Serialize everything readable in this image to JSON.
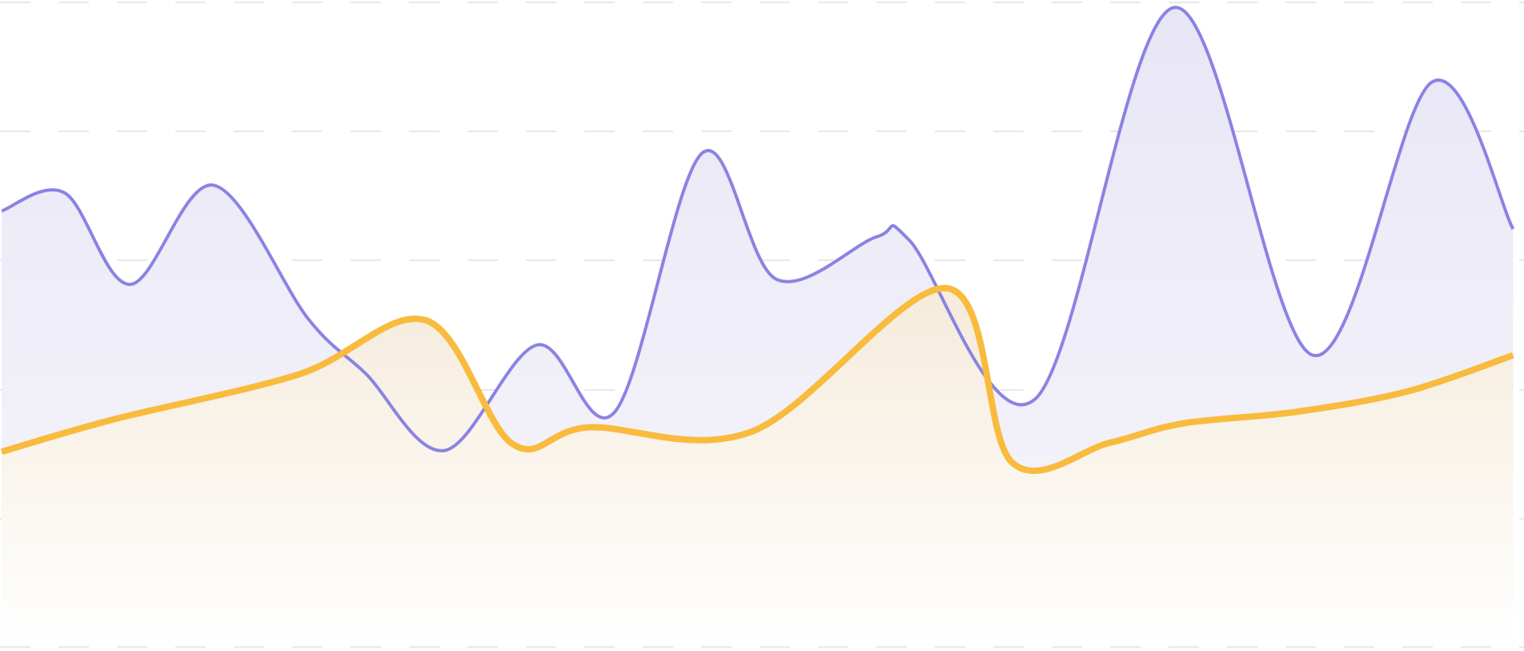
{
  "chart_data": {
    "type": "area",
    "title": "",
    "xlabel": "",
    "ylabel": "",
    "x": [
      0,
      1,
      2,
      3,
      4,
      5,
      6,
      7,
      8,
      9,
      10,
      11,
      12,
      13,
      14,
      15,
      16,
      17,
      18,
      19,
      20,
      21,
      22,
      23,
      24,
      25,
      26
    ],
    "ylim": [
      0,
      100
    ],
    "grid": true,
    "legend": "none",
    "series": [
      {
        "values": [
          67.6,
          70.4,
          56.2,
          71.6,
          50.8,
          42.4,
          30.4,
          46.8,
          36.4,
          76.6,
          57,
          63.6,
          63,
          38.4,
          99.2,
          45.2,
          87.6,
          64.8
        ],
        "x": [
          0,
          1.043,
          2.122,
          3.496,
          5.061,
          5.998,
          7.307,
          8.835,
          10.113,
          11.555,
          12.775,
          14.432,
          14.975,
          17.045,
          19.336,
          21.623,
          23.584,
          24.926
        ],
        "color": "#8a83e3",
        "fill_top": "#e8e6f5",
        "fill_bottom": "#f7f6fb"
      },
      {
        "values": [
          30.2,
          35.2,
          42.2,
          50.6,
          31.4,
          34,
          33.4,
          55.6,
          28.6,
          31.6,
          34.6,
          36.4,
          39.6,
          32.6,
          45.2
        ],
        "x": [
          0,
          1.835,
          4.896,
          7.004,
          8.425,
          9.685,
          12.388,
          15.594,
          16.658,
          18.275,
          19.479,
          21.351,
          23.191,
          24.926,
          24.926
        ],
        "color": "#f8bb3d",
        "fill_top": "#f5ebdb",
        "fill_bottom": "#ffffff"
      }
    ]
  }
}
